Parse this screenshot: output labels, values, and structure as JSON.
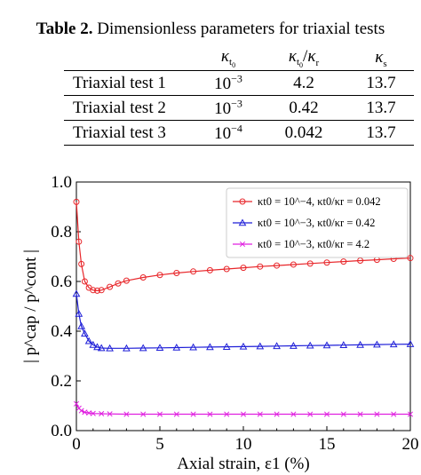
{
  "table": {
    "caption_bold": "Table 2.",
    "caption_text": "Dimensionless parameters for triaxial tests",
    "headers": [
      "",
      "κ_t0",
      "κ_t0 / κ_r",
      "κ_s"
    ],
    "rows": [
      [
        "Triaxial test 1",
        "10^−3",
        "4.2",
        "13.7"
      ],
      [
        "Triaxial test 2",
        "10^−3",
        "0.42",
        "13.7"
      ],
      [
        "Triaxial test 3",
        "10^−4",
        "0.042",
        "13.7"
      ]
    ]
  },
  "chart_data": {
    "type": "line",
    "xlabel": "Axial strain, ε1 (%)",
    "ylabel": "| p^cap / p^cont |",
    "xlim": [
      0,
      20
    ],
    "ylim": [
      0,
      1.0
    ],
    "xticks": [
      "0",
      "5",
      "10",
      "15",
      "20"
    ],
    "yticks": [
      "0.0",
      "0.2",
      "0.4",
      "0.6",
      "0.8",
      "1.0"
    ],
    "legend_position": "top-right",
    "grid": false,
    "series": [
      {
        "name": "κt0 = 10^−4, κt0/κr = 0.042",
        "color": "#e8262a",
        "marker": "circle",
        "points": [
          [
            0,
            0.92
          ],
          [
            0.15,
            0.76
          ],
          [
            0.3,
            0.67
          ],
          [
            0.5,
            0.6
          ],
          [
            0.75,
            0.575
          ],
          [
            1,
            0.565
          ],
          [
            1.25,
            0.563
          ],
          [
            1.5,
            0.565
          ],
          [
            2,
            0.578
          ],
          [
            2.5,
            0.592
          ],
          [
            3,
            0.603
          ],
          [
            4,
            0.616
          ],
          [
            5,
            0.626
          ],
          [
            6,
            0.634
          ],
          [
            7,
            0.64
          ],
          [
            8,
            0.645
          ],
          [
            9,
            0.65
          ],
          [
            10,
            0.655
          ],
          [
            11,
            0.66
          ],
          [
            12,
            0.664
          ],
          [
            13,
            0.668
          ],
          [
            14,
            0.672
          ],
          [
            15,
            0.676
          ],
          [
            16,
            0.68
          ],
          [
            17,
            0.684
          ],
          [
            18,
            0.687
          ],
          [
            19,
            0.691
          ],
          [
            20,
            0.694
          ]
        ]
      },
      {
        "name": "κt0 = 10^−3, κt0/κr = 0.42",
        "color": "#1f1fd8",
        "marker": "triangle",
        "points": [
          [
            0,
            0.55
          ],
          [
            0.15,
            0.47
          ],
          [
            0.3,
            0.42
          ],
          [
            0.5,
            0.39
          ],
          [
            0.75,
            0.36
          ],
          [
            1,
            0.345
          ],
          [
            1.25,
            0.336
          ],
          [
            1.5,
            0.332
          ],
          [
            2,
            0.331
          ],
          [
            3,
            0.331
          ],
          [
            4,
            0.332
          ],
          [
            5,
            0.333
          ],
          [
            6,
            0.334
          ],
          [
            7,
            0.335
          ],
          [
            8,
            0.336
          ],
          [
            9,
            0.337
          ],
          [
            10,
            0.338
          ],
          [
            11,
            0.339
          ],
          [
            12,
            0.34
          ],
          [
            13,
            0.341
          ],
          [
            14,
            0.342
          ],
          [
            15,
            0.343
          ],
          [
            16,
            0.344
          ],
          [
            17,
            0.345
          ],
          [
            18,
            0.346
          ],
          [
            19,
            0.347
          ],
          [
            20,
            0.348
          ]
        ]
      },
      {
        "name": "κt0 = 10^−3, κt0/κr = 4.2",
        "color": "#e020e0",
        "marker": "x",
        "points": [
          [
            0,
            0.108
          ],
          [
            0.15,
            0.09
          ],
          [
            0.3,
            0.08
          ],
          [
            0.5,
            0.074
          ],
          [
            0.75,
            0.071
          ],
          [
            1,
            0.069
          ],
          [
            1.5,
            0.068
          ],
          [
            2,
            0.067
          ],
          [
            3,
            0.066
          ],
          [
            4,
            0.066
          ],
          [
            5,
            0.066
          ],
          [
            6,
            0.066
          ],
          [
            7,
            0.066
          ],
          [
            8,
            0.066
          ],
          [
            9,
            0.066
          ],
          [
            10,
            0.066
          ],
          [
            11,
            0.066
          ],
          [
            12,
            0.066
          ],
          [
            13,
            0.066
          ],
          [
            14,
            0.066
          ],
          [
            15,
            0.066
          ],
          [
            16,
            0.066
          ],
          [
            17,
            0.066
          ],
          [
            18,
            0.066
          ],
          [
            19,
            0.066
          ],
          [
            20,
            0.066
          ]
        ]
      }
    ]
  }
}
